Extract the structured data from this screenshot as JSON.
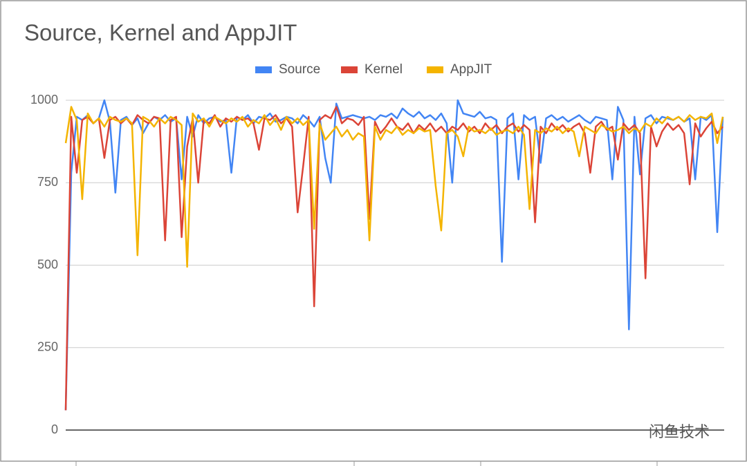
{
  "chart_data": {
    "type": "line",
    "title": "Source, Kernel and AppJIT",
    "ylim": [
      0,
      1000
    ],
    "yticks": [
      0,
      250,
      500,
      750,
      1000
    ],
    "grid": true,
    "legend": "top",
    "series": [
      {
        "name": "Source",
        "color": "#4285f4",
        "values": [
          60,
          780,
          950,
          940,
          955,
          930,
          945,
          1000,
          935,
          720,
          940,
          950,
          925,
          945,
          900,
          930,
          950,
          940,
          955,
          935,
          945,
          760,
          950,
          890,
          955,
          930,
          945,
          950,
          935,
          940,
          780,
          950,
          940,
          955,
          930,
          950,
          945,
          960,
          935,
          940,
          950,
          945,
          930,
          955,
          940,
          920,
          950,
          825,
          750,
          990,
          945,
          950,
          955,
          950,
          945,
          950,
          940,
          955,
          950,
          960,
          945,
          975,
          960,
          950,
          965,
          945,
          955,
          940,
          960,
          930,
          750,
          1000,
          960,
          955,
          950,
          965,
          945,
          950,
          940,
          510,
          945,
          960,
          760,
          955,
          940,
          950,
          810,
          945,
          955,
          940,
          950,
          935,
          945,
          955,
          940,
          930,
          950,
          945,
          940,
          760,
          980,
          940,
          305,
          950,
          775,
          945,
          955,
          930,
          950,
          945,
          940,
          950,
          935,
          945,
          760,
          950,
          940,
          955,
          600,
          950
        ]
      },
      {
        "name": "Kernel",
        "color": "#db4437",
        "values": [
          60,
          950,
          780,
          940,
          950,
          930,
          945,
          825,
          940,
          950,
          930,
          945,
          925,
          955,
          940,
          930,
          950,
          945,
          575,
          940,
          950,
          585,
          860,
          945,
          750,
          940,
          930,
          955,
          920,
          945,
          935,
          950,
          940,
          945,
          930,
          850,
          945,
          940,
          955,
          930,
          945,
          920,
          660,
          800,
          950,
          375,
          940,
          955,
          945,
          980,
          930,
          945,
          940,
          925,
          950,
          640,
          935,
          900,
          920,
          945,
          920,
          910,
          930,
          900,
          925,
          910,
          930,
          905,
          920,
          900,
          920,
          910,
          930,
          905,
          920,
          900,
          930,
          910,
          925,
          900,
          920,
          930,
          905,
          925,
          910,
          630,
          920,
          900,
          930,
          910,
          925,
          905,
          920,
          930,
          900,
          780,
          920,
          935,
          910,
          920,
          820,
          930,
          910,
          925,
          900,
          460,
          920,
          860,
          905,
          930,
          910,
          925,
          900,
          745,
          930,
          890,
          915,
          935,
          900,
          920
        ]
      },
      {
        "name": "AppJIT",
        "color": "#f4b400",
        "values": [
          870,
          980,
          940,
          700,
          960,
          930,
          945,
          920,
          950,
          940,
          935,
          945,
          930,
          530,
          950,
          940,
          920,
          945,
          930,
          950,
          940,
          925,
          495,
          960,
          935,
          945,
          920,
          950,
          940,
          930,
          945,
          935,
          950,
          920,
          940,
          930,
          955,
          925,
          945,
          910,
          950,
          930,
          945,
          925,
          940,
          610,
          930,
          880,
          900,
          920,
          890,
          910,
          880,
          900,
          890,
          575,
          920,
          880,
          910,
          900,
          920,
          895,
          910,
          900,
          915,
          905,
          910,
          740,
          605,
          900,
          910,
          890,
          830,
          920,
          905,
          910,
          900,
          915,
          895,
          905,
          910,
          900,
          920,
          895,
          670,
          910,
          900,
          915,
          905,
          920,
          900,
          915,
          905,
          830,
          920,
          910,
          900,
          925,
          915,
          905,
          910,
          920,
          900,
          915,
          905,
          930,
          920,
          945,
          930,
          950,
          940,
          950,
          935,
          955,
          940,
          950,
          945,
          960,
          870,
          950
        ]
      }
    ],
    "watermark": "闲鱼技术"
  }
}
